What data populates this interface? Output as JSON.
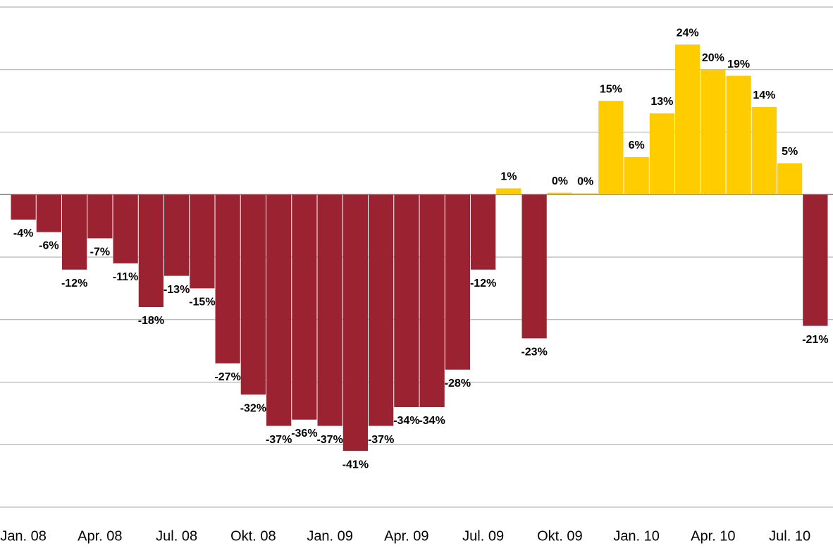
{
  "chart_data": {
    "type": "bar",
    "categories": [
      "Jan. 08",
      null,
      null,
      "Apr. 08",
      null,
      null,
      "Jul. 08",
      null,
      null,
      "Okt. 08",
      null,
      null,
      "Jan. 09",
      null,
      null,
      "Apr. 09",
      null,
      null,
      "Jul. 09",
      null,
      null,
      "Okt. 09",
      null,
      null,
      "Jan. 10",
      null,
      null,
      "Apr. 10",
      null,
      null,
      "Jul. 10",
      null
    ],
    "values": [
      -4,
      -6,
      -12,
      -7,
      -11,
      -18,
      -13,
      -15,
      -27,
      -32,
      -37,
      -36,
      -37,
      -41,
      -37,
      -34,
      -34,
      -28,
      -12,
      1,
      -23,
      0.3,
      0.2,
      15,
      6,
      13,
      24,
      20,
      19,
      14,
      5,
      -21
    ],
    "value_labels": [
      "-4%",
      "-6%",
      "-12%",
      "-7%",
      "-11%",
      "-18%",
      "-13%",
      "-15%",
      "-27%",
      "-32%",
      "-37%",
      "-36%",
      "-37%",
      "-41%",
      "-37%",
      "-34%",
      "-34%",
      "-28%",
      "-12%",
      "1%",
      "-23%",
      "0%",
      "0%",
      "15%",
      "6%",
      "13%",
      "24%",
      "20%",
      "19%",
      "14%",
      "5%",
      "-21%"
    ],
    "color_positive": "#ffcc00",
    "color_negative": "#9b2230",
    "ylim": [
      -50,
      30
    ],
    "yticks": [
      -50,
      -40,
      -30,
      -20,
      -10,
      0,
      10,
      20,
      30
    ],
    "grid": true
  }
}
